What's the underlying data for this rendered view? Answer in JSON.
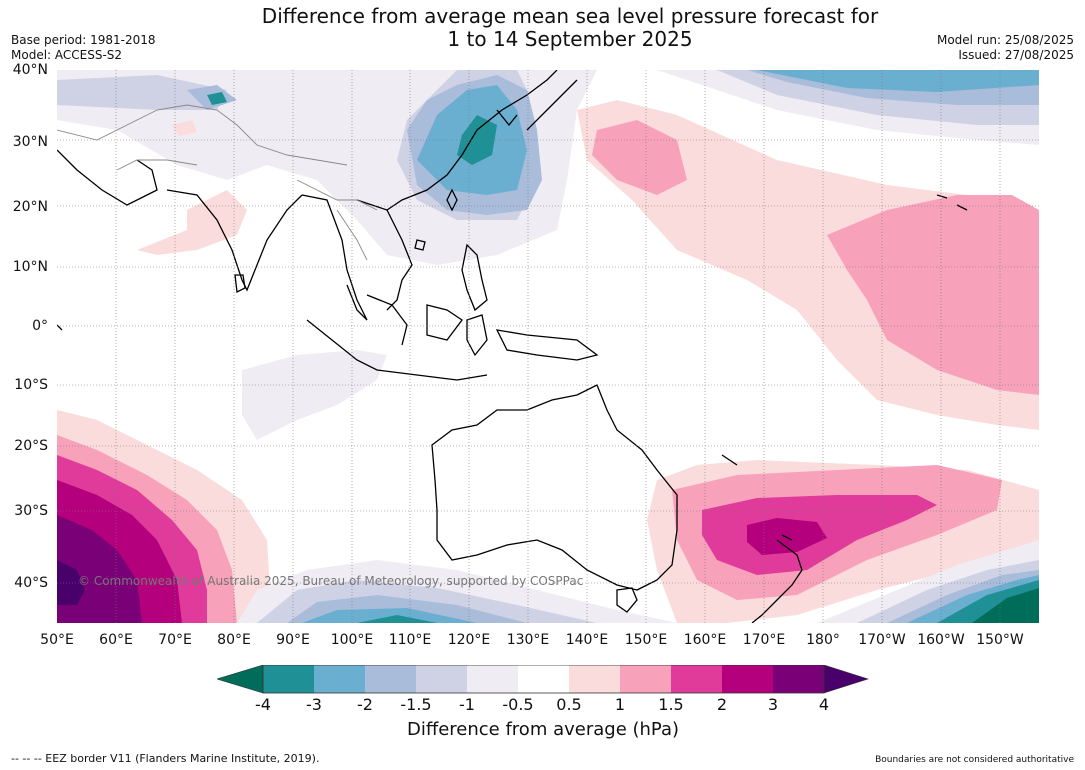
{
  "title": {
    "line1": "Difference from average mean sea level pressure forecast for",
    "line2": "1 to 14 September 2025"
  },
  "meta": {
    "base_period": "Base period: 1981-2018",
    "model": "Model: ACCESS-S2",
    "model_run": "Model run: 25/08/2025",
    "issued": "Issued: 27/08/2025"
  },
  "map": {
    "lat_labels": [
      "40°N",
      "30°N",
      "20°N",
      "10°N",
      "0°",
      "10°S",
      "20°S",
      "30°S",
      "40°S"
    ],
    "lon_labels": [
      "50°E",
      "60°E",
      "70°E",
      "80°E",
      "90°E",
      "100°E",
      "110°E",
      "120°E",
      "130°E",
      "140°E",
      "150°E",
      "160°E",
      "170°E",
      "180°",
      "170°W",
      "160°W",
      "150°W"
    ],
    "copyright": "© Commonwealth of Australia 2025, Bureau of Meteorology, supported by COSPPac",
    "colors": {
      "le_-4": "#006d5b",
      "-4_-3": "#1f9096",
      "-3_-2": "#6aaed0",
      "-2_-1.5": "#a9bcda",
      "-1.5_-1": "#cfd1e5",
      "-1_-0.5": "#efecf3",
      "-0.5_0.5": "#ffffff",
      "0.5_1": "#fbdcdc",
      "1_1.5": "#f7a1bb",
      "1.5_2": "#e03a9a",
      "2_3": "#b4007d",
      "3_4": "#7a0077",
      "ge_4": "#4a006a",
      "coastline": "#000000",
      "border": "#888888",
      "grid": "#888888"
    }
  },
  "colorbar": {
    "ticks": [
      "-4",
      "-3",
      "-2",
      "-1.5",
      "-1",
      "-0.5",
      "0.5",
      "1",
      "1.5",
      "2",
      "3",
      "4"
    ],
    "title": "Difference from average (hPa)"
  },
  "footer": {
    "left": "--  --  -- EEZ border V11 (Flanders Marine Institute, 2019).",
    "right": "Boundaries are not considered authoritative"
  }
}
